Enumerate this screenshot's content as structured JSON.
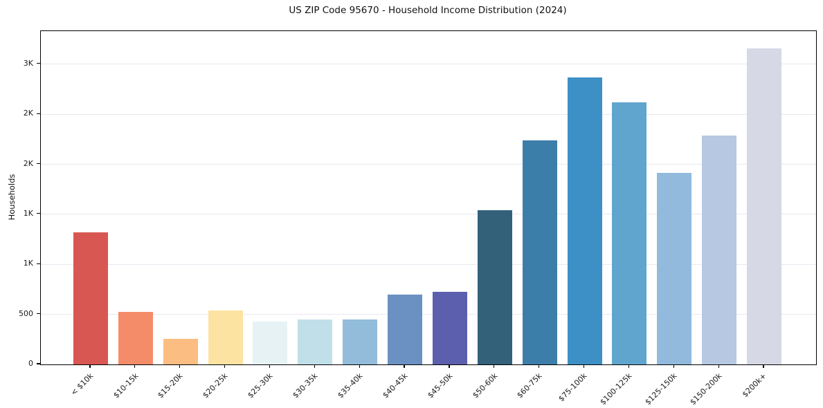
{
  "title": "US ZIP Code 95670 - Household Income Distribution (2024)",
  "chart_data": {
    "type": "bar",
    "title": "US ZIP Code 95670 - Household Income Distribution (2024)",
    "xlabel": "",
    "ylabel": "Households",
    "categories": [
      "< $10k",
      "$10-15k",
      "$15-20k",
      "$20-25k",
      "$25-30k",
      "$30-35k",
      "$35-40k",
      "$40-45k",
      "$45-50k",
      "$50-60k",
      "$60-75k",
      "$75-100k",
      "$100-125k",
      "$125-150k",
      "$150-200k",
      "$200k+"
    ],
    "values": [
      1320,
      525,
      255,
      540,
      430,
      450,
      448,
      695,
      725,
      1540,
      2240,
      2865,
      2620,
      1915,
      2290,
      3160
    ],
    "bar_colors": [
      "#d95752",
      "#f58c69",
      "#fbbd81",
      "#fde3a2",
      "#e7f2f4",
      "#c0dfe9",
      "#92bcd9",
      "#6b91c2",
      "#5c5fae",
      "#33617a",
      "#3c7eaa",
      "#3d90c5",
      "#60a5cd",
      "#91badd",
      "#b6c8e2",
      "#d7d8e5"
    ],
    "ylim": [
      0,
      3330
    ],
    "yticks": [
      {
        "value": 0,
        "label": "0"
      },
      {
        "value": 500,
        "label": "500"
      },
      {
        "value": 1000,
        "label": "1K"
      },
      {
        "value": 1500,
        "label": "1K"
      },
      {
        "value": 2000,
        "label": "2K"
      },
      {
        "value": 2500,
        "label": "2K"
      },
      {
        "value": 3000,
        "label": "3K"
      }
    ],
    "grid": "horizontal",
    "grid_color": "#e8e8f0",
    "background_color": "#ffffff",
    "spine_color": "#000000",
    "legend": "none"
  }
}
